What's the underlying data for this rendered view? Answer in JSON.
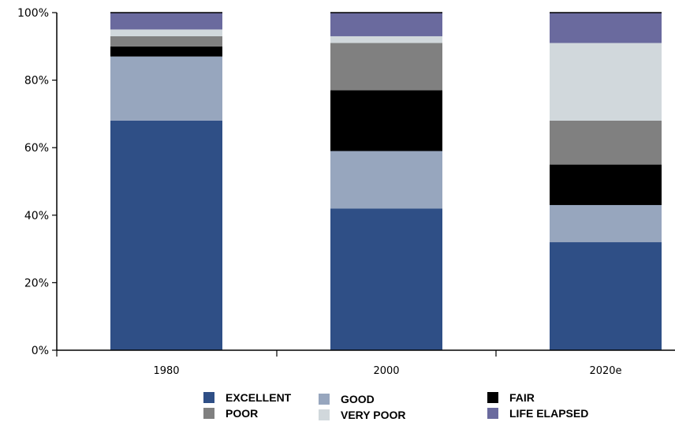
{
  "chart_data": {
    "type": "bar",
    "stacked": true,
    "categories": [
      "1980",
      "2000",
      "2020e"
    ],
    "y_ticks": [
      "0%",
      "20%",
      "40%",
      "60%",
      "80%",
      "100%"
    ],
    "ylim": [
      0,
      100
    ],
    "grid": false,
    "legend_position": "bottom",
    "series": [
      {
        "name": "EXCELLENT",
        "color": "#2f4f86",
        "values": [
          68,
          42,
          32
        ]
      },
      {
        "name": "GOOD",
        "color": "#97a6be",
        "values": [
          19,
          17,
          11
        ]
      },
      {
        "name": "FAIR",
        "color": "#000000",
        "values": [
          3,
          18,
          12
        ]
      },
      {
        "name": "POOR",
        "color": "#808080",
        "values": [
          3,
          14,
          13
        ]
      },
      {
        "name": "VERY POOR",
        "color": "#d1d8dc",
        "values": [
          2,
          2,
          23
        ]
      },
      {
        "name": "LIFE ELAPSED",
        "color": "#6a6a9e",
        "values": [
          5,
          7,
          9
        ]
      }
    ]
  },
  "legend": {
    "items": [
      {
        "label": "EXCELLENT",
        "color": "#2f4f86"
      },
      {
        "label": "GOOD",
        "color": "#97a6be"
      },
      {
        "label": "FAIR",
        "color": "#000000"
      },
      {
        "label": "POOR",
        "color": "#808080"
      },
      {
        "label": "VERY POOR",
        "color": "#d1d8dc"
      },
      {
        "label": "LIFE ELAPSED",
        "color": "#6a6a9e"
      }
    ]
  }
}
